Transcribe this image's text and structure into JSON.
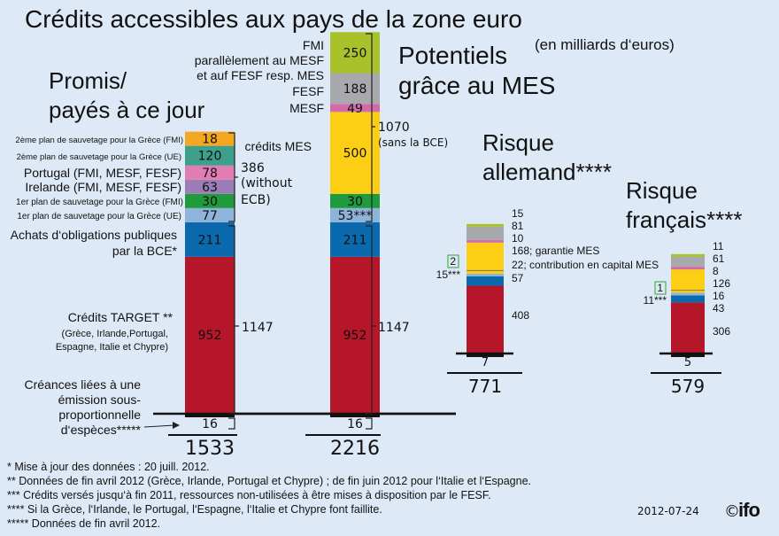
{
  "title": "Crédits accessibles aux pays de la zone euro",
  "unit_note": "(en milliards d‘euros)",
  "headings": {
    "promis": [
      "Promis/",
      "payés à ce jour"
    ],
    "potentiels": [
      "Potentiels",
      "grâce au MES"
    ],
    "allemand": [
      "Risque",
      "allemand****"
    ],
    "francais": [
      "Risque",
      "français****"
    ]
  },
  "colors": {
    "background": "#dde9f6",
    "target": "#b5162a",
    "bce": "#0b6aad",
    "greece1_ue": "#8fb4da",
    "greece1_fmi": "#1f9a3c",
    "ireland": "#9b7db8",
    "portugal": "#e27db3",
    "greece2_ue": "#3ca08c",
    "greece2_fmi": "#f5a623",
    "mes": "#fccf14",
    "mesf": "#d56aa8",
    "fesf": "#a7a9ac",
    "fmi": "#a9c22c"
  },
  "chart_data": {
    "type": "stacked bar",
    "unit": "milliards d‘euros",
    "bars": [
      {
        "name": "promis",
        "base": {
          "label": "Créances liées à une émission sous-proportionnelle d‘espèces*****",
          "label_lines": [
            "Créances liées à une",
            "émission sous-",
            "proportionnelle",
            "d‘espèces*****"
          ],
          "value": 16,
          "text": "16"
        },
        "total": "1533",
        "segments": [
          {
            "label": "Crédits TARGET **",
            "sublabel": [
              "(Grèce, Irlande,Portugal,",
              "Espagne, Italie et Chypre)"
            ],
            "value": 952,
            "text": "952",
            "color": "target"
          },
          {
            "label": "Achats d‘obligations publiques",
            "label2": "par la BCE*",
            "value": 211,
            "text": "211",
            "color": "bce"
          },
          {
            "label": "1er plan de sauvetage pour la Grèce (UE)",
            "value": 77,
            "text": "77",
            "color": "greece1_ue"
          },
          {
            "label": "1er plan de sauvetage pour la Grèce (FMI)",
            "value": 30,
            "text": "30",
            "color": "greece1_fmi"
          },
          {
            "label": "Irelande (FMI, MESF, FESF)",
            "value": 63,
            "text": "63",
            "color": "ireland"
          },
          {
            "label": "Portugal (FMI, MESF, FESF)",
            "value": 78,
            "text": "78",
            "color": "portugal"
          },
          {
            "label": "2ème plan de sauvetage pour la Grèce (UE)",
            "value": 120,
            "text": "120",
            "color": "greece2_ue"
          },
          {
            "label": "2ème plan de sauvetage pour la Grèce (FMI)",
            "value": 18,
            "text": "18",
            "color": "greece2_fmi"
          }
        ],
        "brackets": [
          {
            "text": [
              "386",
              "(without",
              "ECB)"
            ]
          },
          {
            "text": [
              "1147"
            ]
          }
        ]
      },
      {
        "name": "potentiels",
        "base": {
          "value": 16,
          "text": "16"
        },
        "total": "2216",
        "segments": [
          {
            "value": 952,
            "text": "952",
            "color": "target"
          },
          {
            "value": 211,
            "text": "211",
            "color": "bce"
          },
          {
            "value": 53,
            "text": "53***",
            "color": "greece1_ue"
          },
          {
            "value": 30,
            "text": "30",
            "color": "greece1_fmi"
          },
          {
            "label": "crédits MES",
            "value": 500,
            "text": "500",
            "color": "mes"
          },
          {
            "label": "MESF",
            "value": 49,
            "text": "49",
            "color": "mesf"
          },
          {
            "label": "FESF",
            "value": 188,
            "text": "188",
            "color": "fesf"
          },
          {
            "label_lines": [
              "FMI",
              "parallèlement au MESF",
              "et auf FESF resp. MES"
            ],
            "value": 250,
            "text": "250",
            "color": "fmi"
          }
        ],
        "brackets": [
          {
            "text": [
              "1070",
              "(sans la BCE)"
            ]
          },
          {
            "text": [
              "1147"
            ]
          }
        ]
      },
      {
        "name": "allemand",
        "base": {
          "value": 7,
          "text": "7"
        },
        "total": "771",
        "segments": [
          {
            "value": 408,
            "text": "408",
            "color": "target"
          },
          {
            "value": 57,
            "text": "57",
            "color": "bce"
          },
          {
            "value": 15,
            "text": "15***",
            "color": "greece1_ue"
          },
          {
            "value": 22,
            "text": "22; contribution en capital MES",
            "color": "mes"
          },
          {
            "value": 2,
            "text": "2",
            "color": "greece1_fmi"
          },
          {
            "value": 168,
            "text": "168; garantie MES",
            "color": "mes"
          },
          {
            "value": 10,
            "text": "10",
            "color": "mesf"
          },
          {
            "value": 81,
            "text": "81",
            "color": "fesf"
          },
          {
            "value": 15,
            "text": "15",
            "color": "fmi"
          }
        ]
      },
      {
        "name": "francais",
        "base": {
          "value": 5,
          "text": "5"
        },
        "total": "579",
        "segments": [
          {
            "value": 306,
            "text": "306",
            "color": "target"
          },
          {
            "value": 43,
            "text": "43",
            "color": "bce"
          },
          {
            "value": 11,
            "text": "11***",
            "color": "greece1_ue"
          },
          {
            "value": 16,
            "text": "16",
            "color": "mes"
          },
          {
            "value": 1,
            "text": "1",
            "color": "greece1_fmi"
          },
          {
            "value": 126,
            "text": "126",
            "color": "mes"
          },
          {
            "value": 8,
            "text": "8",
            "color": "mesf"
          },
          {
            "value": 61,
            "text": "61",
            "color": "fesf"
          },
          {
            "value": 11,
            "text": "11",
            "color": "fmi"
          }
        ]
      }
    ]
  },
  "footnotes": [
    "* Mise à jour des données : 20 juill. 2012.",
    "** Données de fin avril 2012 (Grèce, Irlande, Portugal et Chypre) ; de fin juin 2012 pour l‘Italie et l‘Espagne.",
    "*** Crédits versés jusqu‘à fin 2011, ressources non-utilisées à être mises à disposition par le FESF.",
    "**** Si la Grèce, l‘Irlande, le Portugal, l‘Espagne, l‘Italie et Chypre font faillite.",
    "***** Données de fin avril 2012."
  ],
  "date": "2012-07-24",
  "logo": "©ifo"
}
